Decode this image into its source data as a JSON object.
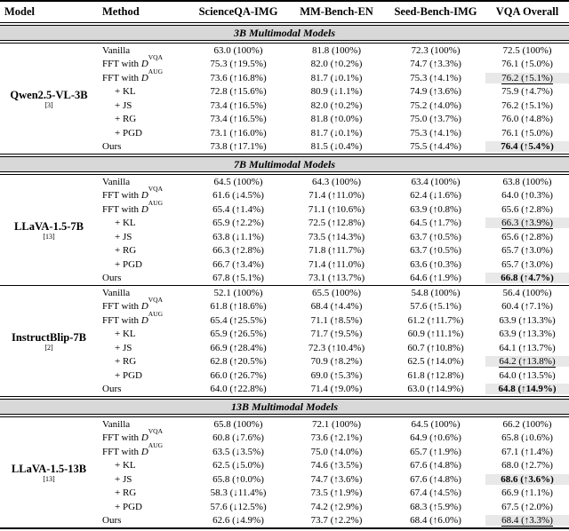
{
  "styles": {
    "band_bg": "#d8d8d8",
    "highlight_bg": "#e8e8e8",
    "rule_color": "#000000"
  },
  "table": {
    "columns": [
      "Model",
      "Method",
      "ScienceQA-IMG",
      "MM-Bench-EN",
      "Seed-Bench-IMG",
      "VQA Overall"
    ],
    "sections": [
      {
        "title": "3B Multimodal Models",
        "blocks": [
          {
            "model": "Qwen2.5-VL-3B",
            "cite": "[3]",
            "rows": [
              {
                "m": "Vanilla",
                "cells": [
                  {
                    "t": "63.0 (100%)"
                  },
                  {
                    "t": "81.8 (100%)"
                  },
                  {
                    "t": "72.3 (100%)"
                  },
                  {
                    "t": "72.5 (100%)"
                  }
                ]
              },
              {
                "m": "FFT with ",
                "v": "D",
                "sup": "VQA",
                "cells": [
                  {
                    "t": "75.3 (↑19.5%)"
                  },
                  {
                    "t": "82.0 (↑0.2%)"
                  },
                  {
                    "t": "74.7 (↑3.3%)"
                  },
                  {
                    "t": "76.1 (↑5.0%)"
                  }
                ]
              },
              {
                "m": "FFT with ",
                "v": "D",
                "sup": "AUG",
                "cells": [
                  {
                    "t": "73.6 (↑16.8%)"
                  },
                  {
                    "t": "81.7 (↓0.1%)"
                  },
                  {
                    "t": "75.3 (↑4.1%)"
                  },
                  {
                    "t": "76.2 (↑5.1%)",
                    "s": "second"
                  }
                ]
              },
              {
                "m": "+ KL",
                "cells": [
                  {
                    "t": "72.8 (↑15.6%)"
                  },
                  {
                    "t": "80.9 (↓1.1%)"
                  },
                  {
                    "t": "74.9 (↑3.6%)"
                  },
                  {
                    "t": "75.9 (↑4.7%)"
                  }
                ]
              },
              {
                "m": "+ JS",
                "cells": [
                  {
                    "t": "73.4 (↑16.5%)"
                  },
                  {
                    "t": "82.0 (↑0.2%)"
                  },
                  {
                    "t": "75.2 (↑4.0%)"
                  },
                  {
                    "t": "76.2 (↑5.1%)"
                  }
                ]
              },
              {
                "m": "+ RG",
                "cells": [
                  {
                    "t": "73.4 (↑16.5%)"
                  },
                  {
                    "t": "81.8 (↑0.0%)"
                  },
                  {
                    "t": "75.0 (↑3.7%)"
                  },
                  {
                    "t": "76.0 (↑4.8%)"
                  }
                ]
              },
              {
                "m": "+ PGD",
                "cells": [
                  {
                    "t": "73.1 (↑16.0%)"
                  },
                  {
                    "t": "81.7 (↓0.1%)"
                  },
                  {
                    "t": "75.3 (↑4.1%)"
                  },
                  {
                    "t": "76.1 (↑5.0%)"
                  }
                ]
              },
              {
                "m": "Ours",
                "cells": [
                  {
                    "t": "73.8 (↑17.1%)"
                  },
                  {
                    "t": "81.5 (↓0.4%)"
                  },
                  {
                    "t": "75.5 (↑4.4%)"
                  },
                  {
                    "t": "76.4 (↑5.4%)",
                    "s": "best"
                  }
                ]
              }
            ]
          }
        ]
      },
      {
        "title": "7B Multimodal Models",
        "blocks": [
          {
            "model": "LLaVA-1.5-7B",
            "cite": "[13]",
            "rows": [
              {
                "m": "Vanilla",
                "cells": [
                  {
                    "t": "64.5 (100%)"
                  },
                  {
                    "t": "64.3 (100%)"
                  },
                  {
                    "t": "63.4 (100%)"
                  },
                  {
                    "t": "63.8 (100%)"
                  }
                ]
              },
              {
                "m": "FFT with ",
                "v": "D",
                "sup": "VQA",
                "cells": [
                  {
                    "t": "61.6 (↓4.5%)"
                  },
                  {
                    "t": "71.4 (↑11.0%)"
                  },
                  {
                    "t": "62.4 (↓1.6%)"
                  },
                  {
                    "t": "64.0 (↑0.3%)"
                  }
                ]
              },
              {
                "m": "FFT with ",
                "v": "D",
                "sup": "AUG",
                "cells": [
                  {
                    "t": "65.4 (↑1.4%)"
                  },
                  {
                    "t": "71.1 (↑10.6%)"
                  },
                  {
                    "t": "63.9 (↑0.8%)"
                  },
                  {
                    "t": "65.6 (↑2.8%)"
                  }
                ]
              },
              {
                "m": "+ KL",
                "cells": [
                  {
                    "t": "65.9 (↑2.2%)"
                  },
                  {
                    "t": "72.5 (↑12.8%)"
                  },
                  {
                    "t": "64.5 (↑1.7%)"
                  },
                  {
                    "t": "66.3 (↑3.9%)",
                    "s": "second"
                  }
                ]
              },
              {
                "m": "+ JS",
                "cells": [
                  {
                    "t": "63.8 (↓1.1%)"
                  },
                  {
                    "t": "73.5 (↑14.3%)"
                  },
                  {
                    "t": "63.7 (↑0.5%)"
                  },
                  {
                    "t": "65.6 (↑2.8%)"
                  }
                ]
              },
              {
                "m": "+ RG",
                "cells": [
                  {
                    "t": "66.3 (↑2.8%)"
                  },
                  {
                    "t": "71.8 (↑11.7%)"
                  },
                  {
                    "t": "63.7 (↑0.5%)"
                  },
                  {
                    "t": "65.7 (↑3.0%)"
                  }
                ]
              },
              {
                "m": "+ PGD",
                "cells": [
                  {
                    "t": "66.7 (↑3.4%)"
                  },
                  {
                    "t": "71.4 (↑11.0%)"
                  },
                  {
                    "t": "63.6 (↑0.3%)"
                  },
                  {
                    "t": "65.7 (↑3.0%)"
                  }
                ]
              },
              {
                "m": "Ours",
                "cells": [
                  {
                    "t": "67.8 (↑5.1%)"
                  },
                  {
                    "t": "73.1 (↑13.7%)"
                  },
                  {
                    "t": "64.6 (↑1.9%)"
                  },
                  {
                    "t": "66.8 (↑4.7%)",
                    "s": "best"
                  }
                ]
              }
            ]
          },
          {
            "model": "InstructBlip-7B",
            "cite": "[2]",
            "rows": [
              {
                "m": "Vanilla",
                "cells": [
                  {
                    "t": "52.1 (100%)"
                  },
                  {
                    "t": "65.5 (100%)"
                  },
                  {
                    "t": "54.8 (100%)"
                  },
                  {
                    "t": "56.4 (100%)"
                  }
                ]
              },
              {
                "m": "FFT with ",
                "v": "D",
                "sup": "VQA",
                "cells": [
                  {
                    "t": "61.8 (↑18.6%)"
                  },
                  {
                    "t": "68.4 (↑4.4%)"
                  },
                  {
                    "t": "57.6 (↑5.1%)"
                  },
                  {
                    "t": "60.4 (↑7.1%)"
                  }
                ]
              },
              {
                "m": "FFT with ",
                "v": "D",
                "sup": "AUG",
                "cells": [
                  {
                    "t": "65.4 (↑25.5%)"
                  },
                  {
                    "t": "71.1 (↑8.5%)"
                  },
                  {
                    "t": "61.2 (↑11.7%)"
                  },
                  {
                    "t": "63.9 (↑13.3%)"
                  }
                ]
              },
              {
                "m": "+ KL",
                "cells": [
                  {
                    "t": "65.9 (↑26.5%)"
                  },
                  {
                    "t": "71.7 (↑9.5%)"
                  },
                  {
                    "t": "60.9 (↑11.1%)"
                  },
                  {
                    "t": "63.9 (↑13.3%)"
                  }
                ]
              },
              {
                "m": "+ JS",
                "cells": [
                  {
                    "t": "66.9 (↑28.4%)"
                  },
                  {
                    "t": "72.3 (↑10.4%)"
                  },
                  {
                    "t": "60.7 (↑10.8%)"
                  },
                  {
                    "t": "64.1 (↑13.7%)"
                  }
                ]
              },
              {
                "m": "+ RG",
                "cells": [
                  {
                    "t": "62.8 (↑20.5%)"
                  },
                  {
                    "t": "70.9 (↑8.2%)"
                  },
                  {
                    "t": "62.5 (↑14.0%)"
                  },
                  {
                    "t": "64.2 (↑13.8%)",
                    "s": "second"
                  }
                ]
              },
              {
                "m": "+ PGD",
                "cells": [
                  {
                    "t": "66.0 (↑26.7%)"
                  },
                  {
                    "t": "69.0 (↑5.3%)"
                  },
                  {
                    "t": "61.8 (↑12.8%)"
                  },
                  {
                    "t": "64.0 (↑13.5%)"
                  }
                ]
              },
              {
                "m": "Ours",
                "cells": [
                  {
                    "t": "64.0 (↑22.8%)"
                  },
                  {
                    "t": "71.4 (↑9.0%)"
                  },
                  {
                    "t": "63.0 (↑14.9%)"
                  },
                  {
                    "t": "64.8 (↑14.9%)",
                    "s": "best"
                  }
                ]
              }
            ]
          }
        ]
      },
      {
        "title": "13B Multimodal Models",
        "blocks": [
          {
            "model": "LLaVA-1.5-13B",
            "cite": "[13]",
            "rows": [
              {
                "m": "Vanilla",
                "cells": [
                  {
                    "t": "65.8 (100%)"
                  },
                  {
                    "t": "72.1 (100%)"
                  },
                  {
                    "t": "64.5 (100%)"
                  },
                  {
                    "t": "66.2 (100%)"
                  }
                ]
              },
              {
                "m": "FFT with ",
                "v": "D",
                "sup": "VQA",
                "cells": [
                  {
                    "t": "60.8 (↓7.6%)"
                  },
                  {
                    "t": "73.6 (↑2.1%)"
                  },
                  {
                    "t": "64.9 (↑0.6%)"
                  },
                  {
                    "t": "65.8 (↓0.6%)"
                  }
                ]
              },
              {
                "m": "FFT with ",
                "v": "D",
                "sup": "AUG",
                "cells": [
                  {
                    "t": "63.5 (↓3.5%)"
                  },
                  {
                    "t": "75.0 (↑4.0%)"
                  },
                  {
                    "t": "65.7 (↑1.9%)"
                  },
                  {
                    "t": "67.1 (↑1.4%)"
                  }
                ]
              },
              {
                "m": "+ KL",
                "cells": [
                  {
                    "t": "62.5 (↓5.0%)"
                  },
                  {
                    "t": "74.6 (↑3.5%)"
                  },
                  {
                    "t": "67.6 (↑4.8%)"
                  },
                  {
                    "t": "68.0 (↑2.7%)"
                  }
                ]
              },
              {
                "m": "+ JS",
                "cells": [
                  {
                    "t": "65.8 (↑0.0%)"
                  },
                  {
                    "t": "74.7 (↑3.6%)"
                  },
                  {
                    "t": "67.6 (↑4.8%)"
                  },
                  {
                    "t": "68.6 (↑3.6%)",
                    "s": "best"
                  }
                ]
              },
              {
                "m": "+ RG",
                "cells": [
                  {
                    "t": "58.3 (↓11.4%)"
                  },
                  {
                    "t": "73.5 (↑1.9%)"
                  },
                  {
                    "t": "67.4 (↑4.5%)"
                  },
                  {
                    "t": "66.9 (↑1.1%)"
                  }
                ]
              },
              {
                "m": "+ PGD",
                "cells": [
                  {
                    "t": "57.6 (↓12.5%)"
                  },
                  {
                    "t": "74.2 (↑2.9%)"
                  },
                  {
                    "t": "68.3 (↑5.9%)"
                  },
                  {
                    "t": "67.5 (↑2.0%)"
                  }
                ]
              },
              {
                "m": "Ours",
                "cells": [
                  {
                    "t": "62.6 (↓4.9%)"
                  },
                  {
                    "t": "73.7 (↑2.2%)"
                  },
                  {
                    "t": "68.4 (↑6.0%)"
                  },
                  {
                    "t": "68.4 (↑3.3%)",
                    "s": "second"
                  }
                ]
              }
            ]
          }
        ]
      }
    ]
  }
}
